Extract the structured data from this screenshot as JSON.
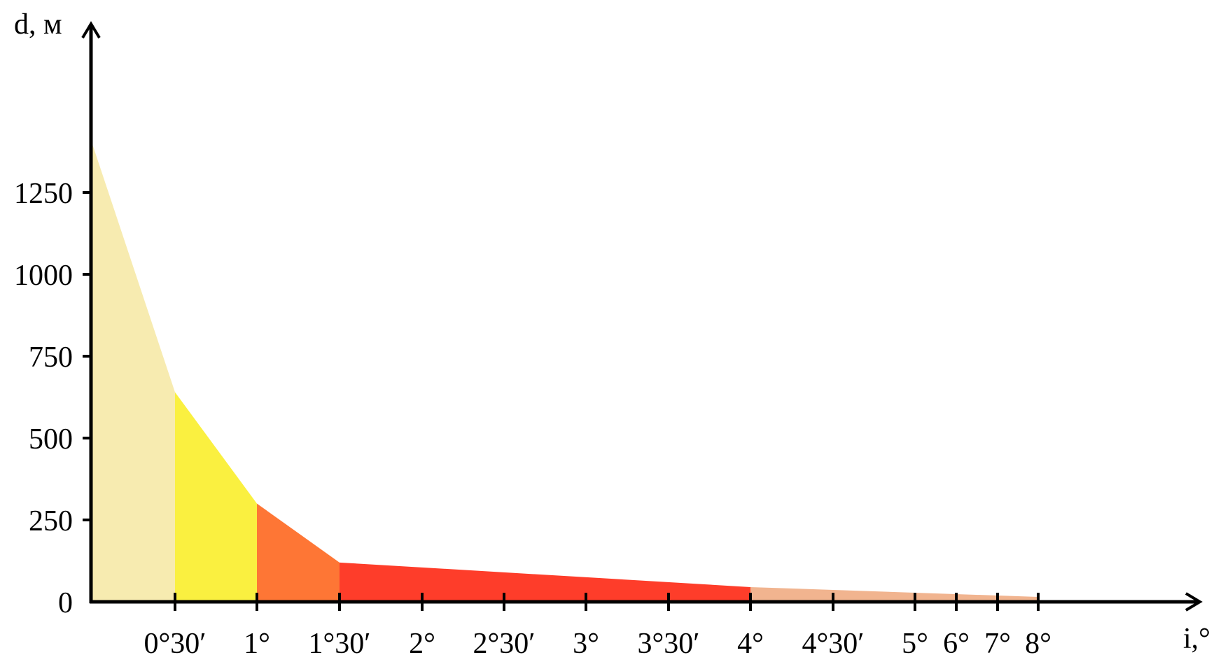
{
  "chart_data": {
    "type": "area",
    "ylabel": "d, м",
    "xlabel": "i,°",
    "y_ticks": [
      "0",
      "250",
      "500",
      "750",
      "1000",
      "1250"
    ],
    "y_tick_values": [
      0,
      250,
      500,
      750,
      1000,
      1250
    ],
    "x_ticks": [
      "0°30′",
      "1°",
      "1°30′",
      "2°",
      "2°30′",
      "3°",
      "3°30′",
      "4°",
      "4°30′",
      "5°",
      "6°",
      "7°",
      "8°"
    ],
    "ylim": [
      0,
      1750
    ],
    "points": [
      {
        "x": "0°",
        "y": 1410
      },
      {
        "x": "0°30′",
        "y": 640
      },
      {
        "x": "1°",
        "y": 300
      },
      {
        "x": "1°30′",
        "y": 120
      },
      {
        "x": "4°",
        "y": 45
      },
      {
        "x": "8°",
        "y": 15
      }
    ],
    "segments": [
      {
        "from": "0°",
        "to": "0°30′",
        "color": "#f7ebb0"
      },
      {
        "from": "0°30′",
        "to": "1°",
        "color": "#faf040"
      },
      {
        "from": "1°",
        "to": "1°30′",
        "color": "#fe7635"
      },
      {
        "from": "1°30′",
        "to": "4°",
        "color": "#fe3d2a"
      },
      {
        "from": "4°",
        "to": "8°",
        "color": "#f1b48f"
      }
    ]
  }
}
